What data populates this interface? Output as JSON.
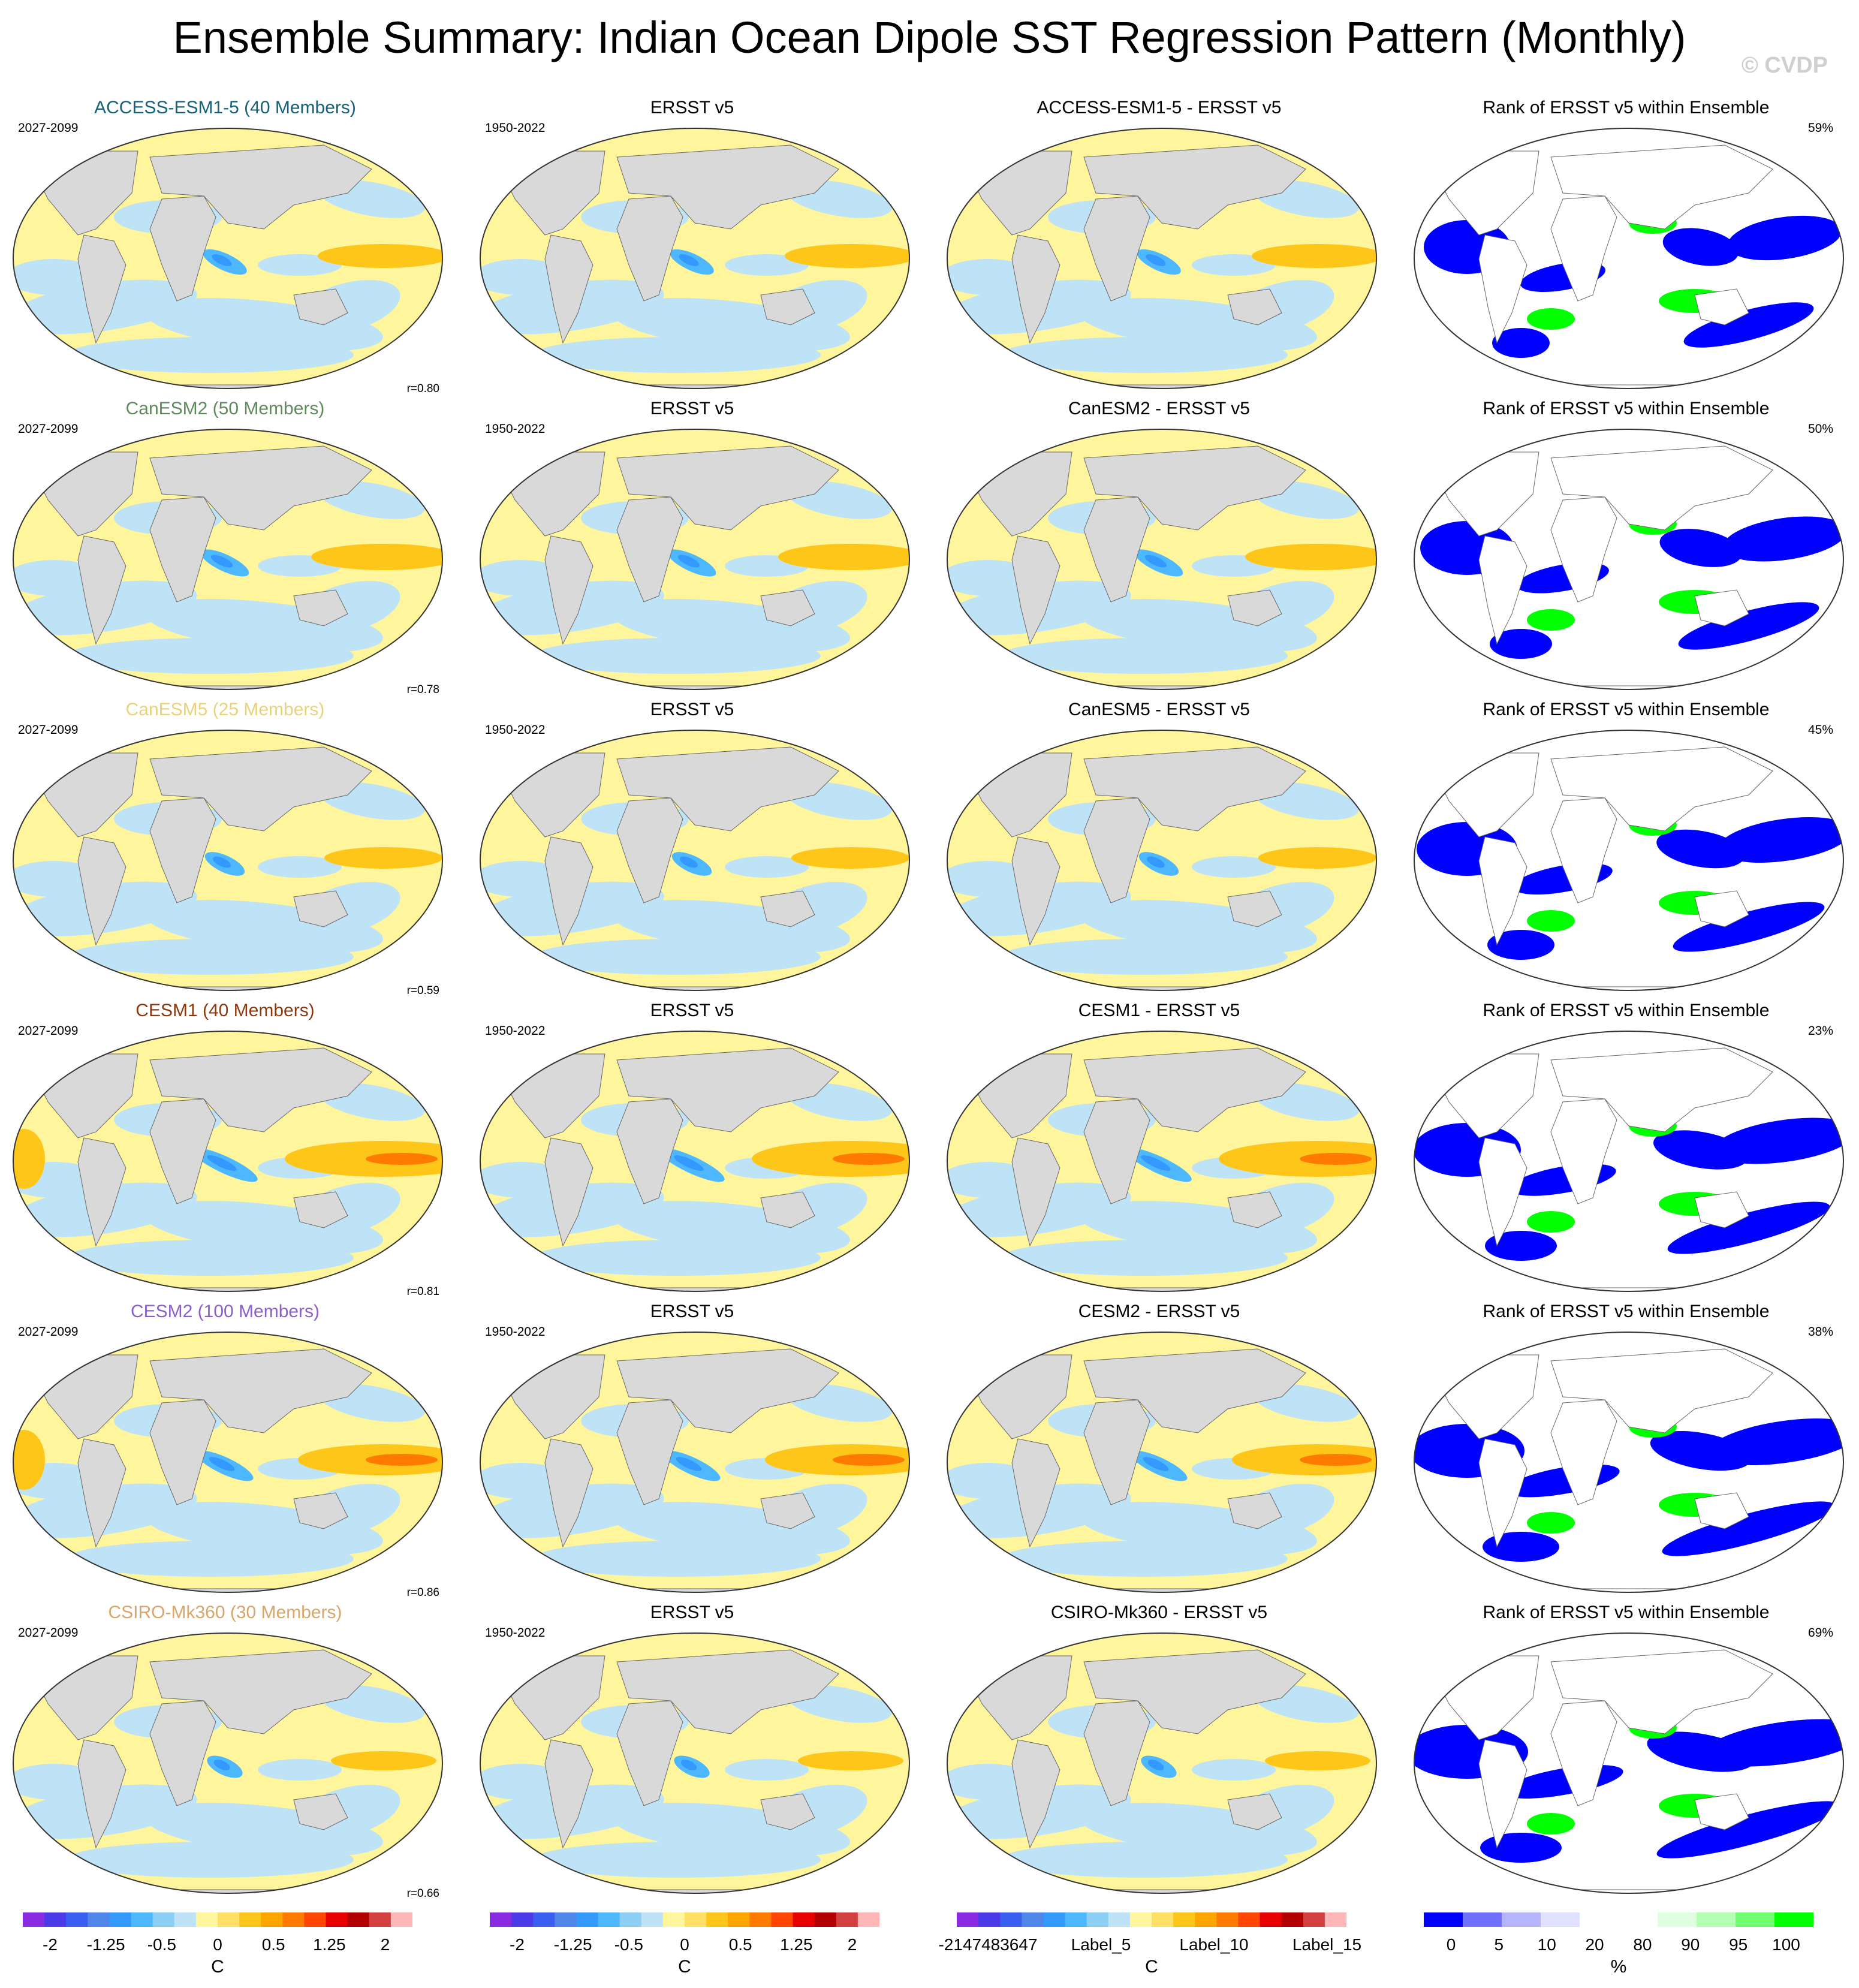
{
  "title": "Ensemble Summary: Indian Ocean Dipole SST Regression Pattern (Monthly)",
  "watermark": "© CVDP",
  "colors": {
    "ocean_base": "#ffffff",
    "land": "#d9d9d9",
    "diverging": [
      "#8a2be2",
      "#4a3ae8",
      "#3a5ef0",
      "#4f86e8",
      "#3399ff",
      "#4db8ff",
      "#8dd0f5",
      "#bfe3f6",
      "#fff59d",
      "#ffe066",
      "#ffc61a",
      "#ffa500",
      "#ff7b00",
      "#ff4500",
      "#e60000",
      "#b30000",
      "#d24040",
      "#ffb6b6"
    ],
    "rank": [
      "#0000ff",
      "#7070ff",
      "#b4b4ff",
      "#e0e0ff",
      "#ffffff",
      "#ffffff",
      "#e0ffe0",
      "#b4ffb4",
      "#70ff70",
      "#00ff00"
    ]
  },
  "rows": [
    {
      "model": "ACCESS-ESM1-5 (40 Members)",
      "model_color": "#15607a",
      "period": "2027-2099",
      "r": "r=0.80",
      "diff_title": "ACCESS-ESM1-5 - ERSST v5",
      "rank_pct": "59%",
      "strength": 1.0
    },
    {
      "model": "CanESM2 (50 Members)",
      "model_color": "#5e8a5e",
      "period": "2027-2099",
      "r": "r=0.78",
      "diff_title": "CanESM2 - ERSST v5",
      "rank_pct": "50%",
      "strength": 1.1
    },
    {
      "model": "CanESM5 (25 Members)",
      "model_color": "#e8d27a",
      "period": "2027-2099",
      "r": "r=0.59",
      "diff_title": "CanESM5 - ERSST v5",
      "rank_pct": "45%",
      "strength": 0.9
    },
    {
      "model": "CESM1 (40 Members)",
      "model_color": "#8b3a0f",
      "period": "2027-2099",
      "r": "r=0.81",
      "diff_title": "CESM1 - ERSST v5",
      "rank_pct": "23%",
      "strength": 1.5
    },
    {
      "model": "CESM2 (100 Members)",
      "model_color": "#8a60c8",
      "period": "2027-2099",
      "r": "r=0.86",
      "diff_title": "CESM2 - ERSST v5",
      "rank_pct": "38%",
      "strength": 1.3
    },
    {
      "model": "CSIRO-Mk360 (30 Members)",
      "model_color": "#d8a56b",
      "period": "2027-2099",
      "r": "r=0.66",
      "diff_title": "CSIRO-Mk360 - ERSST v5",
      "rank_pct": "69%",
      "strength": 0.8
    }
  ],
  "obs": {
    "title": "ERSST v5",
    "period": "1950-2022"
  },
  "rank_title": "Rank of ERSST v5 within Ensemble",
  "colorbars": [
    {
      "ticks": [
        "-2",
        "-1.25",
        "-0.5",
        "0",
        "0.5",
        "1.25",
        "2"
      ],
      "unit": "C"
    },
    {
      "ticks": [
        "-2",
        "-1.25",
        "-0.5",
        "0",
        "0.5",
        "1.25",
        "2"
      ],
      "unit": "C"
    },
    {
      "ticks": [
        "-2147483647",
        "Label_5",
        "Label_10",
        "Label_15"
      ],
      "unit": "C"
    },
    {
      "ticks": [
        "0",
        "5",
        "10",
        "20",
        "80",
        "90",
        "95",
        "100"
      ],
      "unit": "%"
    }
  ]
}
